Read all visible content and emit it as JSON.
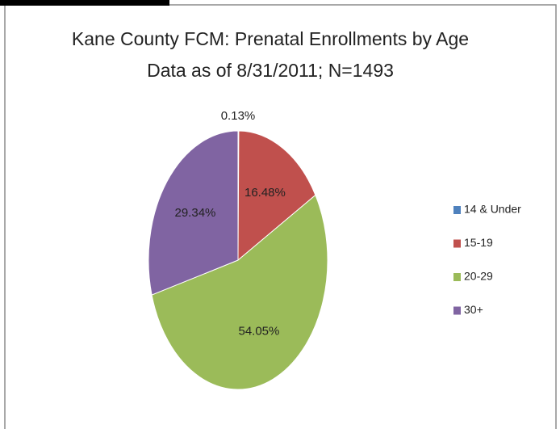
{
  "chart_data": {
    "type": "pie",
    "title": "Kane County FCM: Prenatal Enrollments by Age",
    "subtitle": "Data as of 8/31/2011; N=1493",
    "categories": [
      "14 & Under",
      "15-19",
      "20-29",
      "30+"
    ],
    "values": [
      0.13,
      16.48,
      54.05,
      29.34
    ],
    "value_labels": [
      "0.13%",
      "16.48%",
      "54.05%",
      "29.34%"
    ],
    "colors": [
      "#4f81bd",
      "#c0504d",
      "#9bbb59",
      "#8064a2"
    ],
    "legend": "right"
  }
}
